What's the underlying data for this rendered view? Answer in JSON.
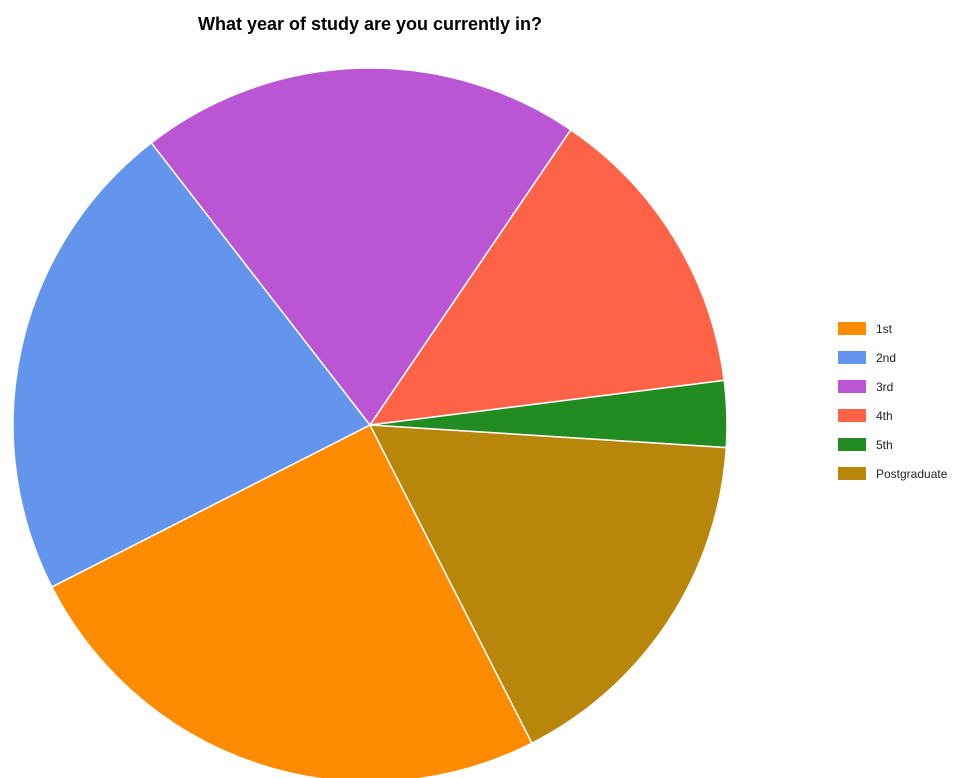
{
  "chart_data": {
    "type": "pie",
    "title": "What year of study are you currently in?",
    "categories": [
      "1st",
      "2nd",
      "3rd",
      "4th",
      "5th",
      "Postgraduate"
    ],
    "values": [
      25,
      22,
      20,
      13.5,
      3,
      16.5
    ],
    "colors": [
      "#ff8c00",
      "#6495ed",
      "#ba55d3",
      "#ff6347",
      "#228b22",
      "#b8860b"
    ],
    "legend_position": "right"
  }
}
